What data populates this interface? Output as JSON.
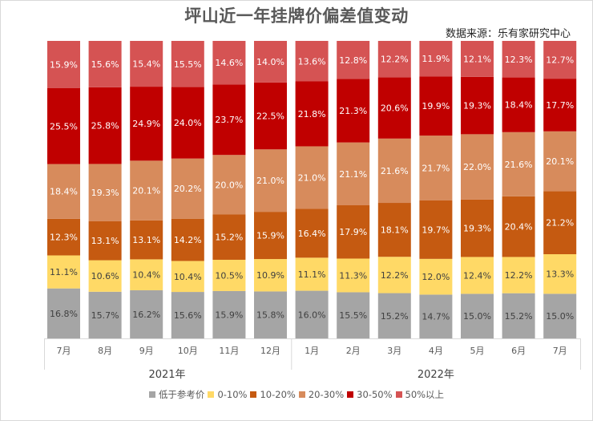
{
  "title": "坪山近一年挂牌价偏差值变动",
  "source": "数据来源：乐有家研究中心",
  "chart_data": {
    "type": "bar",
    "stacked": true,
    "normalized": true,
    "title": "坪山近一年挂牌价偏差值变动",
    "subtitle": "数据来源：乐有家研究中心",
    "xlabel": "",
    "ylabel": "",
    "ylim": [
      0,
      100
    ],
    "grid": false,
    "legend_position": "bottom",
    "groups": [
      {
        "label": "2021年",
        "categories": [
          "7月",
          "8月",
          "9月",
          "10月",
          "11月",
          "12月"
        ]
      },
      {
        "label": "2022年",
        "categories": [
          "1月",
          "2月",
          "3月",
          "4月",
          "5月",
          "6月",
          "7月"
        ]
      }
    ],
    "categories": [
      "7月",
      "8月",
      "9月",
      "10月",
      "11月",
      "12月",
      "1月",
      "2月",
      "3月",
      "4月",
      "5月",
      "6月",
      "7月"
    ],
    "series": [
      {
        "name": "低于参考价",
        "color": "#a5a5a5",
        "label_color": "#404040",
        "values": [
          16.8,
          15.7,
          16.2,
          15.6,
          15.9,
          15.8,
          16.0,
          15.5,
          15.2,
          14.7,
          15.0,
          15.2,
          15.0
        ]
      },
      {
        "name": "0-10%",
        "color": "#ffd966",
        "label_color": "#404040",
        "values": [
          11.1,
          10.6,
          10.4,
          10.4,
          10.5,
          10.9,
          11.1,
          11.3,
          12.2,
          12.0,
          12.4,
          12.2,
          13.3
        ]
      },
      {
        "name": "10-20%",
        "color": "#c55a11",
        "label_color": "#ffffff",
        "values": [
          12.3,
          13.1,
          13.1,
          14.2,
          15.2,
          15.9,
          16.4,
          17.9,
          18.1,
          19.7,
          19.3,
          20.4,
          21.2
        ]
      },
      {
        "name": "20-30%",
        "color": "#d78b5c",
        "label_color": "#ffffff",
        "values": [
          18.4,
          19.3,
          20.1,
          20.2,
          20.0,
          21.0,
          21.0,
          21.1,
          21.6,
          21.7,
          22.0,
          21.6,
          20.1
        ]
      },
      {
        "name": "30-50%",
        "color": "#c00000",
        "label_color": "#ffffff",
        "values": [
          25.5,
          25.8,
          24.9,
          24.0,
          23.7,
          22.5,
          21.8,
          21.3,
          20.6,
          19.9,
          19.3,
          18.4,
          17.7
        ]
      },
      {
        "name": "50%以上",
        "color": "#d55353",
        "label_color": "#ffffff",
        "values": [
          15.9,
          15.6,
          15.4,
          15.5,
          14.6,
          14.0,
          13.6,
          12.8,
          12.2,
          11.9,
          12.1,
          12.3,
          12.7
        ]
      }
    ]
  }
}
